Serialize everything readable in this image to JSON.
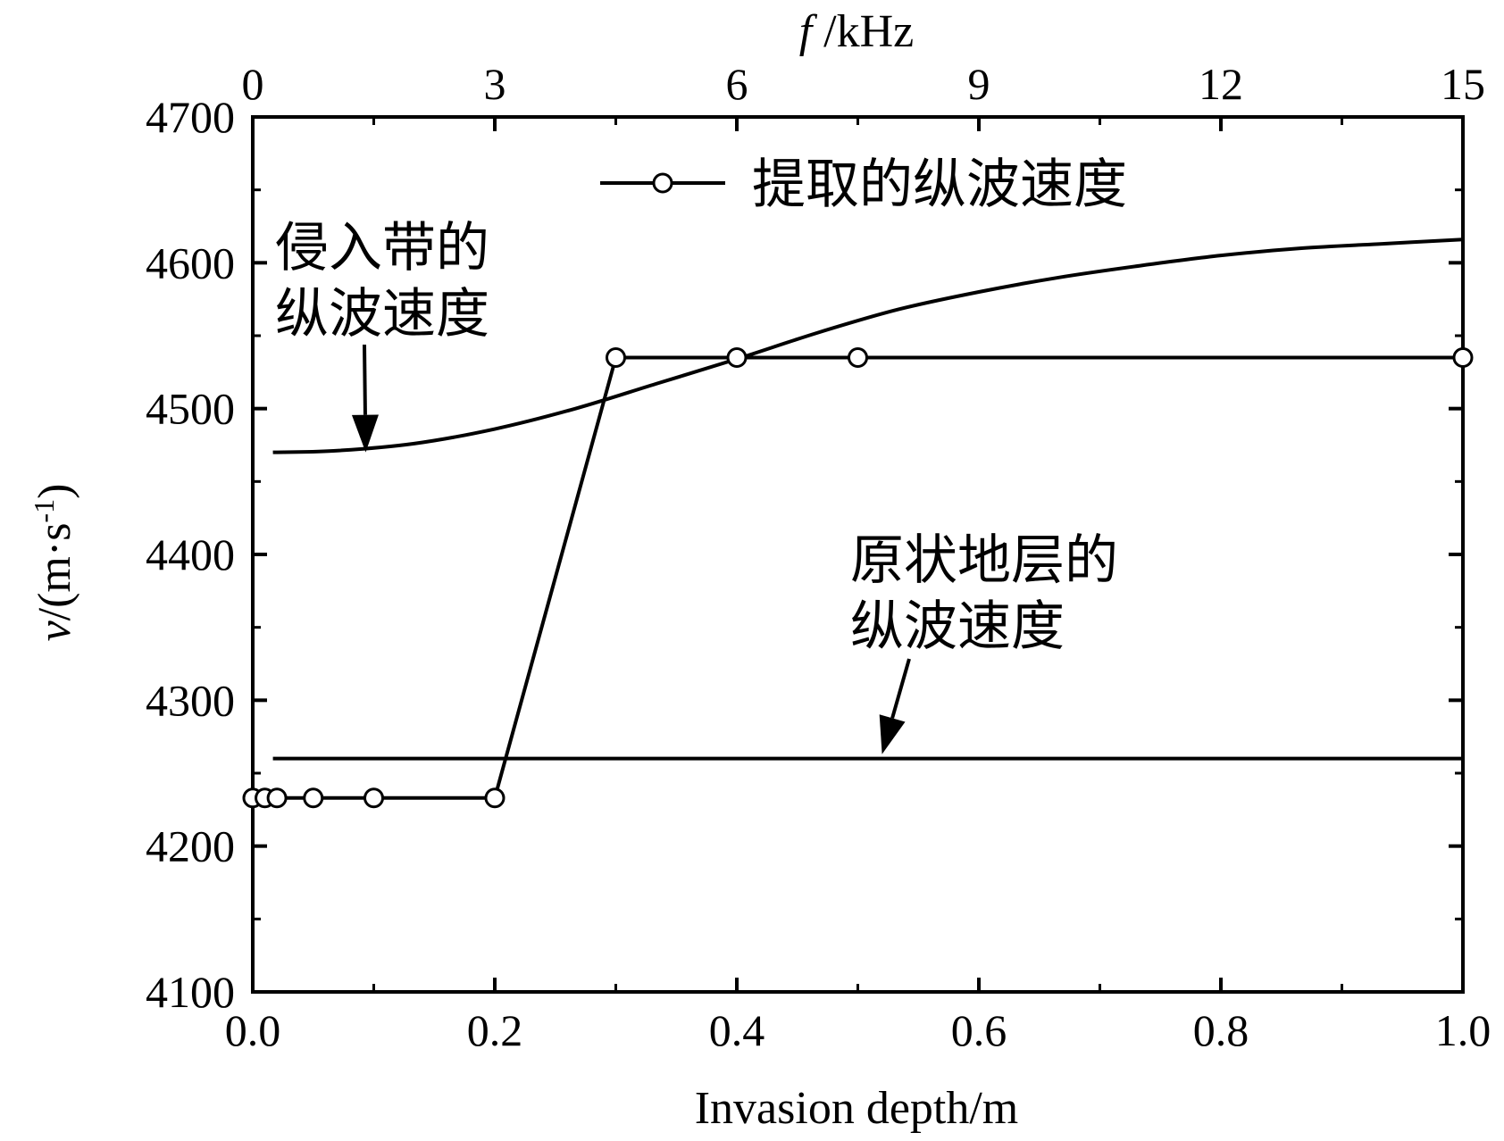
{
  "chart_data": {
    "type": "line",
    "xlabel": "Invasion depth/m",
    "x2label_italic": "f",
    "x2label_rest": " /kHz",
    "ylabel_italic": "v",
    "ylabel_rest": "/(m·s",
    "ylabel_sup": "-1",
    "ylabel_close": ")",
    "xlim": [
      0.0,
      1.0
    ],
    "x2lim": [
      0,
      15
    ],
    "ylim": [
      4100,
      4700
    ],
    "xticks": [
      0.0,
      0.2,
      0.4,
      0.6,
      0.8,
      1.0
    ],
    "xtick_labels": [
      "0.0",
      "0.2",
      "0.4",
      "0.6",
      "0.8",
      "1.0"
    ],
    "x2ticks": [
      0,
      3,
      6,
      9,
      12,
      15
    ],
    "x2tick_labels": [
      "0",
      "3",
      "6",
      "9",
      "12",
      "15"
    ],
    "yticks": [
      4100,
      4200,
      4300,
      4400,
      4500,
      4600,
      4700
    ],
    "ytick_labels": [
      "4100",
      "4200",
      "4300",
      "4400",
      "4500",
      "4600",
      "4700"
    ],
    "grid": false,
    "legend_position": "top-center",
    "series": [
      {
        "name": "提取的纵波速度",
        "axis": "bottom",
        "marker": "circle-open",
        "x": [
          0.0,
          0.01,
          0.02,
          0.05,
          0.1,
          0.2,
          0.3,
          0.4,
          0.5,
          1.0
        ],
        "y": [
          4233,
          4233,
          4233,
          4233,
          4233,
          4233,
          4535,
          4535,
          4535,
          4535
        ]
      },
      {
        "axis": "top",
        "marker": "none",
        "x": [
          0.25,
          1,
          2,
          3,
          4,
          5,
          6,
          7,
          8,
          9,
          10,
          11,
          12,
          13,
          14,
          15
        ],
        "y": [
          4470,
          4471,
          4476,
          4486,
          4500,
          4517,
          4534,
          4552,
          4568,
          4580,
          4590,
          4598,
          4605,
          4610,
          4613,
          4616
        ]
      },
      {
        "axis": "top",
        "marker": "none",
        "x": [
          0.25,
          15
        ],
        "y": [
          4260,
          4260
        ]
      }
    ],
    "annotations": [
      {
        "lines": [
          "侵入带的",
          "纵波速度"
        ],
        "arrow_to": {
          "axis": "top",
          "x": 1.4,
          "y": 4470
        }
      },
      {
        "lines": [
          "原状地层的",
          "纵波速度"
        ],
        "arrow_to": {
          "axis": "top",
          "x": 7.8,
          "y": 4263
        }
      }
    ]
  }
}
